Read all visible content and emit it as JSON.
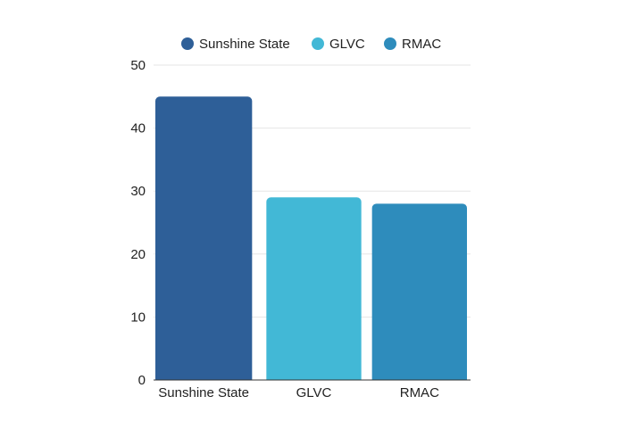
{
  "chart_data": {
    "type": "bar",
    "categories": [
      "Sunshine State",
      "GLVC",
      "RMAC"
    ],
    "values": [
      45,
      29,
      28
    ],
    "colors": [
      "#2e5f98",
      "#42b8d6",
      "#2e8cbc"
    ],
    "legend": [
      {
        "label": "Sunshine State",
        "color": "#2e5f98"
      },
      {
        "label": "GLVC",
        "color": "#42b8d6"
      },
      {
        "label": "RMAC",
        "color": "#2e8cbc"
      }
    ],
    "legend_position": "top-center",
    "title": "",
    "xlabel": "",
    "ylabel": "",
    "ylim": [
      0,
      50
    ],
    "yticks": [
      "0",
      "10",
      "20",
      "30",
      "40",
      "50"
    ],
    "grid": true
  }
}
